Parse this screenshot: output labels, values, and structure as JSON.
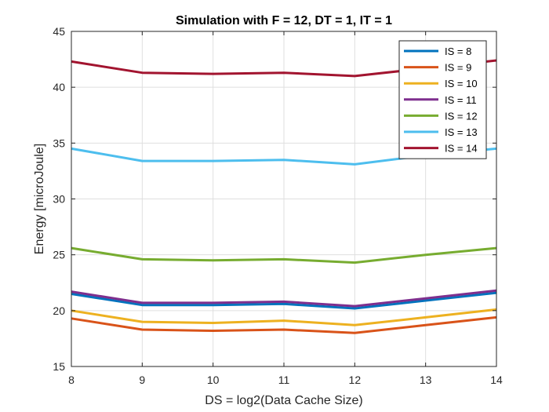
{
  "chart_data": {
    "type": "line",
    "title": "Simulation with F = 12, DT = 1, IT = 1",
    "xlabel": "DS = log2(Data Cache Size)",
    "ylabel": "Energy [microJoule]",
    "xlim": [
      8,
      14
    ],
    "ylim": [
      15,
      45
    ],
    "xticks": [
      8,
      9,
      10,
      11,
      12,
      13,
      14
    ],
    "yticks": [
      15,
      20,
      25,
      30,
      35,
      40,
      45
    ],
    "grid": true,
    "legend_position": "top-right",
    "x": [
      8,
      9,
      10,
      11,
      12,
      13,
      14
    ],
    "series": [
      {
        "name": "IS = 8",
        "color": "#0072BD",
        "values": [
          21.5,
          20.5,
          20.5,
          20.6,
          20.2,
          20.9,
          21.6
        ]
      },
      {
        "name": "IS = 9",
        "color": "#D95319",
        "values": [
          19.3,
          18.3,
          18.2,
          18.3,
          18.0,
          18.7,
          19.4
        ]
      },
      {
        "name": "IS = 10",
        "color": "#EDB120",
        "values": [
          20.0,
          19.0,
          18.9,
          19.1,
          18.7,
          19.4,
          20.1
        ]
      },
      {
        "name": "IS = 11",
        "color": "#7E2F8E",
        "values": [
          21.7,
          20.7,
          20.7,
          20.8,
          20.4,
          21.1,
          21.8
        ]
      },
      {
        "name": "IS = 12",
        "color": "#77AC30",
        "values": [
          25.6,
          24.6,
          24.5,
          24.6,
          24.3,
          25.0,
          25.6
        ]
      },
      {
        "name": "IS = 13",
        "color": "#4DBEEE",
        "values": [
          34.5,
          33.4,
          33.4,
          33.5,
          33.1,
          33.9,
          34.5
        ]
      },
      {
        "name": "IS = 14",
        "color": "#A2142F",
        "values": [
          42.3,
          41.3,
          41.2,
          41.3,
          41.0,
          41.7,
          42.4
        ]
      }
    ]
  }
}
